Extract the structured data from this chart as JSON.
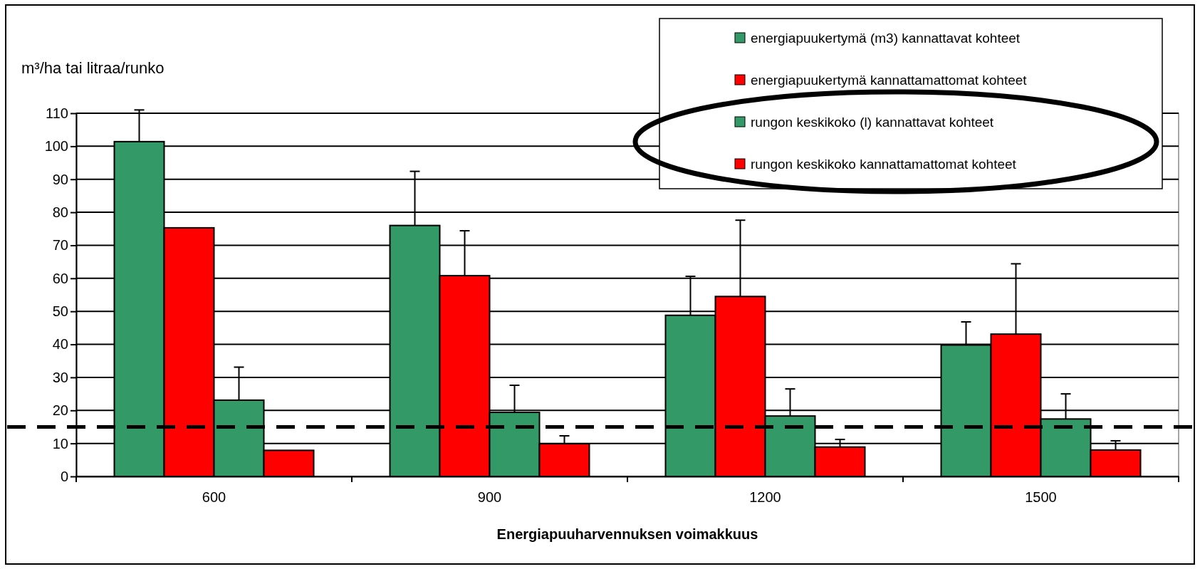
{
  "chart_data": {
    "type": "bar",
    "ylabel": "m³/ha tai litraa/runko",
    "xlabel": "Energiapuuharvennuksen voimakkuus",
    "categories": [
      "600",
      "900",
      "1200",
      "1500"
    ],
    "series": [
      {
        "name": "energiapuukertymä (m3) kannattavat kohteet",
        "color": "#339966",
        "values": [
          101.4,
          76,
          48.8,
          39.8
        ],
        "errors": [
          9.6,
          16.4,
          11.8,
          7
        ]
      },
      {
        "name": "energiapuukertymä kannattamattomat kohteet",
        "color": "#ff0000",
        "values": [
          75.3,
          60.8,
          54.5,
          43.1
        ],
        "errors": [
          null,
          13.6,
          23.1,
          21.3
        ]
      },
      {
        "name": "rungon keskikoko (l) kannattavat kohteet",
        "color": "#339966",
        "values": [
          23.1,
          19.4,
          18.3,
          17.4
        ],
        "errors": [
          10,
          8.2,
          8.2,
          7.6
        ]
      },
      {
        "name": "rungon keskikoko kannattamattomat kohteet",
        "color": "#ff0000",
        "values": [
          7.9,
          9.9,
          8.9,
          8
        ],
        "errors": [
          null,
          2.4,
          2.3,
          2.8
        ]
      }
    ],
    "ylim": [
      0,
      110
    ],
    "yticks": [
      0,
      10,
      20,
      30,
      40,
      50,
      60,
      70,
      80,
      90,
      100,
      110
    ],
    "grid": "y",
    "legend": "top right",
    "ref_lines": [
      {
        "axis": "y",
        "value": 15,
        "line_style": "dashed",
        "color": "#000000"
      }
    ]
  }
}
